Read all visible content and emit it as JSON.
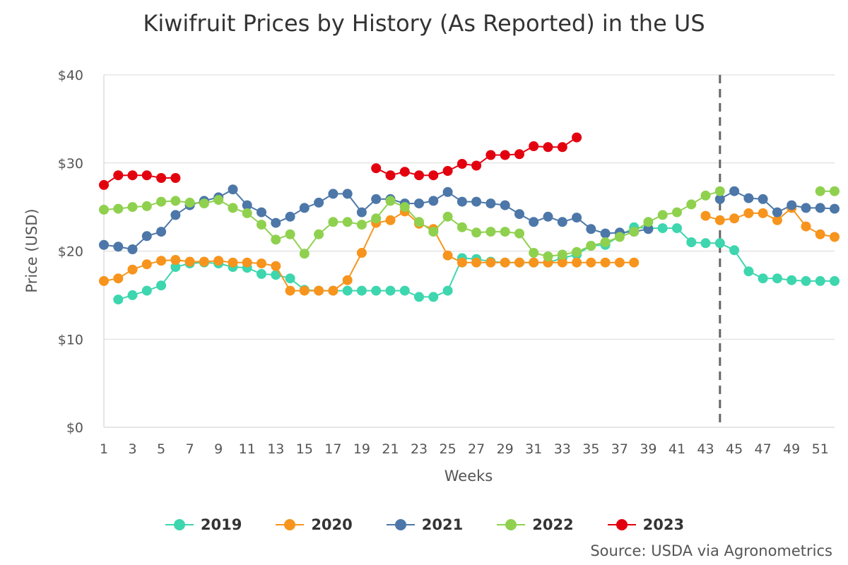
{
  "title": "Kiwifruit Prices by History (As Reported) in the US",
  "source": "Source: USDA via Agronometrics",
  "chart_data": {
    "type": "line",
    "title": "Kiwifruit Prices by History (As Reported) in the US",
    "xlabel": "Weeks",
    "ylabel": "Price (USD)",
    "ylim": [
      0,
      40
    ],
    "yticks": [
      0,
      10,
      20,
      30,
      40
    ],
    "ytick_labels": [
      "$0",
      "$10",
      "$20",
      "$30",
      "$40"
    ],
    "xlim": [
      1,
      52
    ],
    "xtick_labels": [
      "1",
      "3",
      "5",
      "7",
      "9",
      "11",
      "13",
      "15",
      "17",
      "19",
      "21",
      "23",
      "25",
      "27",
      "29",
      "31",
      "33",
      "35",
      "37",
      "39",
      "41",
      "43",
      "45",
      "47",
      "49",
      "51"
    ],
    "reference_line_week": 44,
    "grid": true,
    "legend_position": "bottom-center",
    "series": [
      {
        "name": "2019",
        "color": "#3dd6ae",
        "values": [
          null,
          14.5,
          15,
          15.5,
          16.1,
          18.2,
          18.6,
          18.7,
          18.6,
          18.2,
          18.1,
          17.4,
          17.3,
          16.9,
          15.6,
          15.5,
          15.5,
          15.5,
          15.5,
          15.5,
          15.5,
          15.5,
          14.8,
          14.8,
          15.5,
          19.2,
          19.1,
          18.8,
          18.7,
          18.7,
          18.7,
          18.7,
          19.2,
          19.6,
          20.6,
          20.7,
          21.7,
          22.7,
          22.6,
          22.6,
          22.6,
          21.0,
          20.9,
          20.9,
          20.1,
          17.7,
          16.9,
          16.9,
          16.7,
          16.6,
          16.6,
          16.6
        ]
      },
      {
        "name": "2020",
        "color": "#f7941d",
        "values": [
          16.6,
          16.9,
          17.9,
          18.5,
          18.9,
          19.0,
          18.8,
          18.8,
          18.9,
          18.7,
          18.7,
          18.6,
          18.3,
          15.5,
          15.5,
          15.5,
          15.5,
          16.7,
          19.8,
          23.2,
          23.5,
          24.5,
          23.1,
          22.5,
          19.5,
          18.7,
          18.7,
          18.7,
          18.7,
          18.7,
          18.7,
          18.7,
          18.7,
          18.7,
          18.7,
          18.7,
          18.7,
          18.7,
          null,
          null,
          null,
          null,
          24.0,
          23.5,
          23.7,
          24.3,
          24.3,
          23.5,
          24.9,
          22.8,
          21.9,
          21.6
        ]
      },
      {
        "name": "2021",
        "color": "#4c77a8",
        "values": [
          20.7,
          20.5,
          20.2,
          21.7,
          22.2,
          24.1,
          25.2,
          25.7,
          26.1,
          27.0,
          25.2,
          24.4,
          23.2,
          23.9,
          24.9,
          25.5,
          26.5,
          26.5,
          24.4,
          25.9,
          25.9,
          25.4,
          25.4,
          25.7,
          26.7,
          25.6,
          25.6,
          25.4,
          25.2,
          24.2,
          23.3,
          23.9,
          23.3,
          23.8,
          22.5,
          22.0,
          22.1,
          22.2,
          22.5,
          null,
          null,
          null,
          null,
          25.9,
          26.8,
          26.0,
          25.9,
          24.4,
          25.2,
          24.9,
          24.9,
          24.8
        ]
      },
      {
        "name": "2022",
        "color": "#8fd14f",
        "values": [
          24.7,
          24.8,
          25.0,
          25.1,
          25.6,
          25.7,
          25.5,
          25.4,
          25.8,
          24.9,
          24.3,
          23.0,
          21.3,
          21.9,
          19.7,
          21.9,
          23.3,
          23.3,
          23.0,
          23.7,
          25.7,
          25.0,
          23.3,
          22.2,
          23.9,
          22.7,
          22.1,
          22.2,
          22.2,
          22.0,
          19.8,
          19.4,
          19.6,
          19.9,
          20.6,
          21.0,
          21.6,
          22.2,
          23.3,
          24.1,
          24.4,
          25.3,
          26.3,
          26.8,
          null,
          null,
          null,
          null,
          null,
          null,
          26.8,
          26.8
        ]
      },
      {
        "name": "2023",
        "color": "#e3000f",
        "values": [
          27.5,
          28.6,
          28.6,
          28.6,
          28.3,
          28.3,
          null,
          null,
          null,
          null,
          null,
          null,
          null,
          null,
          null,
          null,
          null,
          null,
          null,
          29.4,
          28.6,
          29.0,
          28.6,
          28.6,
          29.1,
          29.9,
          29.7,
          30.9,
          30.9,
          31.0,
          31.9,
          31.8,
          31.8,
          32.9,
          null,
          null,
          null,
          null,
          null,
          null,
          null,
          null,
          null,
          null,
          null,
          null,
          null,
          null,
          null,
          null,
          null,
          null
        ]
      }
    ]
  }
}
